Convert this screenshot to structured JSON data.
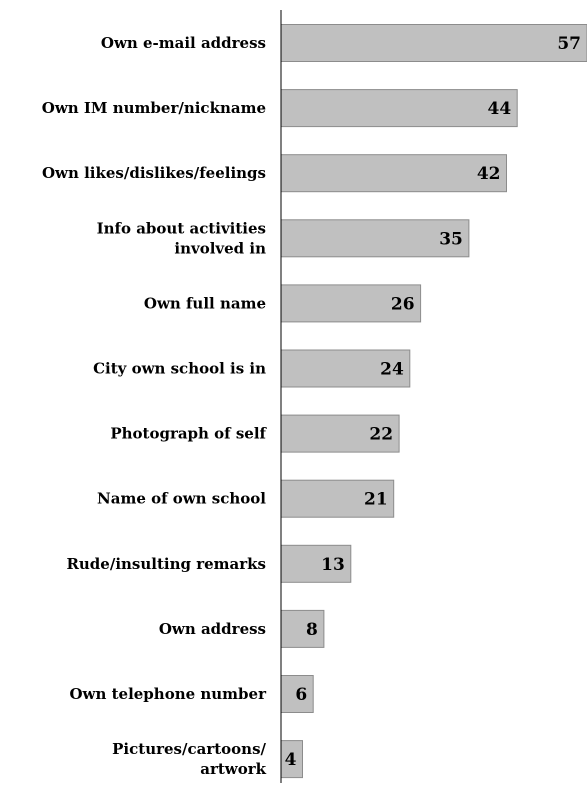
{
  "chart_data": {
    "type": "bar",
    "orientation": "horizontal",
    "categories": [
      [
        "Own e-mail address"
      ],
      [
        "Own IM number/nickname"
      ],
      [
        "Own likes/dislikes/feelings"
      ],
      [
        "Info about activities",
        "involved in"
      ],
      [
        "Own full name"
      ],
      [
        "City own school is in"
      ],
      [
        "Photograph of self"
      ],
      [
        "Name of own school"
      ],
      [
        "Rude/insulting remarks"
      ],
      [
        "Own address"
      ],
      [
        "Own telephone number"
      ],
      [
        "Pictures/cartoons/",
        "artwork"
      ]
    ],
    "values": [
      57,
      44,
      42,
      35,
      26,
      24,
      22,
      21,
      13,
      8,
      6,
      4
    ],
    "title": "",
    "xlabel": "",
    "ylabel": "",
    "xlim": [
      0,
      57
    ],
    "grid": false,
    "legend": "none",
    "colors": {
      "bar_fill": "#c0c0c0",
      "bar_stroke": "#8c8c8c",
      "axis": "#000000",
      "text": "#000000"
    }
  }
}
